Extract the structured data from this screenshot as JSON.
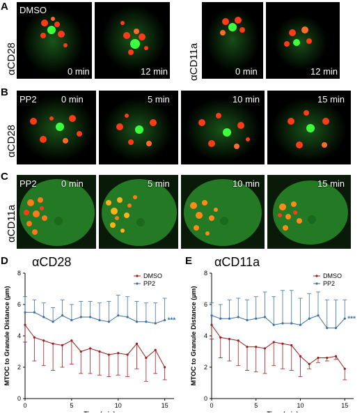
{
  "panels": {
    "A": {
      "label": "A",
      "treatment": "DMSO",
      "left_row_label": "αCD28",
      "right_row_label": "αCD11a",
      "times": [
        "0 min",
        "12 min",
        "0 min",
        "12 min"
      ]
    },
    "B": {
      "label": "B",
      "treatment": "PP2",
      "row_label": "αCD28",
      "times": [
        "0 min",
        "5 min",
        "10 min",
        "15 min"
      ]
    },
    "C": {
      "label": "C",
      "treatment": "PP2",
      "row_label": "αCD11a",
      "times": [
        "0 min",
        "5 min",
        "10 min",
        "15 min"
      ]
    },
    "D": {
      "label": "D"
    },
    "E": {
      "label": "E"
    }
  },
  "colors": {
    "dmso": "#9b1c1c",
    "pp2": "#3a6fa5",
    "cell_green": "#2e9a2e",
    "granule": "#ff3b1a"
  },
  "chart_data": [
    {
      "type": "line",
      "title": "αCD28",
      "xlabel": "Time (min)",
      "ylabel": "MTOC to Granule Distance (µm)",
      "xlim": [
        0,
        16
      ],
      "ylim": [
        0,
        8
      ],
      "x_ticks": [
        "0",
        "5",
        "10",
        "15"
      ],
      "y_ticks": [
        "0",
        "2",
        "4",
        "6",
        "8"
      ],
      "legend_position": "top-right",
      "annotation": "***",
      "series": [
        {
          "name": "DMSO",
          "x": [
            0,
            1,
            2,
            3,
            4,
            5,
            6,
            7,
            8,
            9,
            10,
            11,
            12,
            13,
            14,
            15
          ],
          "y": [
            4.7,
            3.9,
            3.7,
            3.5,
            3.4,
            3.7,
            3.0,
            3.2,
            3.0,
            2.8,
            2.9,
            2.8,
            3.5,
            2.6,
            3.1,
            2.0
          ],
          "err": [
            1.1,
            1.5,
            1.6,
            1.7,
            1.4,
            1.5,
            1.4,
            1.6,
            1.5,
            1.4,
            1.4,
            1.4,
            1.6,
            1.5,
            1.5,
            0.8
          ]
        },
        {
          "name": "PP2",
          "x": [
            0,
            1,
            2,
            3,
            4,
            5,
            6,
            7,
            8,
            9,
            10,
            11,
            12,
            13,
            14,
            15
          ],
          "y": [
            5.5,
            5.5,
            5.2,
            4.9,
            5.3,
            5.0,
            5.2,
            5.2,
            5.0,
            4.9,
            5.3,
            5.2,
            4.9,
            4.9,
            4.8,
            5.0
          ],
          "err": [
            1.0,
            0.8,
            0.9,
            0.9,
            1.0,
            1.0,
            1.0,
            1.0,
            1.1,
            1.3,
            1.3,
            1.3,
            1.3,
            1.2,
            1.3,
            1.4
          ]
        }
      ]
    },
    {
      "type": "line",
      "title": "αCD11a",
      "xlabel": "Time (min)",
      "ylabel": "MTOC to Granule Distance (µm)",
      "xlim": [
        0,
        16
      ],
      "ylim": [
        0,
        8
      ],
      "x_ticks": [
        "0",
        "5",
        "10",
        "15"
      ],
      "y_ticks": [
        "0",
        "2",
        "4",
        "6",
        "8"
      ],
      "legend_position": "top-right",
      "annotation": "***",
      "series": [
        {
          "name": "DMSO",
          "x": [
            0,
            1,
            2,
            3,
            4,
            5,
            6,
            7,
            8,
            9,
            10,
            11,
            12,
            13,
            14,
            15
          ],
          "y": [
            4.7,
            3.9,
            3.8,
            3.7,
            3.3,
            3.3,
            3.2,
            3.6,
            3.5,
            3.4,
            2.7,
            2.2,
            2.6,
            2.6,
            2.7,
            1.9
          ],
          "err": [
            0.9,
            1.3,
            1.4,
            1.6,
            1.5,
            1.6,
            1.6,
            1.5,
            1.6,
            1.6,
            1.3,
            0.3,
            0.3,
            0.2,
            0.2,
            0.7
          ]
        },
        {
          "name": "PP2",
          "x": [
            0,
            1,
            2,
            3,
            4,
            5,
            6,
            7,
            8,
            9,
            10,
            11,
            12,
            13,
            14,
            15
          ],
          "y": [
            5.3,
            5.1,
            5.1,
            5.2,
            5.0,
            5.1,
            5.2,
            4.7,
            4.8,
            4.8,
            4.7,
            5.1,
            5.3,
            4.5,
            4.5,
            5.1
          ],
          "err": [
            0.8,
            0.9,
            1.2,
            1.2,
            1.3,
            1.4,
            1.6,
            1.8,
            2.1,
            2.1,
            1.7,
            1.6,
            1.5,
            1.8,
            1.8,
            1.2
          ]
        }
      ]
    }
  ]
}
